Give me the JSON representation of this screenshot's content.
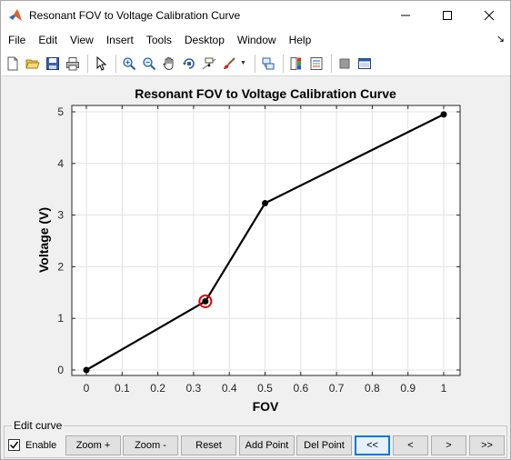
{
  "window": {
    "title": "Resonant FOV to Voltage Calibration Curve",
    "controls": [
      "minimize",
      "maximize",
      "close"
    ]
  },
  "menu": {
    "items": [
      "File",
      "Edit",
      "View",
      "Insert",
      "Tools",
      "Desktop",
      "Window",
      "Help"
    ]
  },
  "toolbar": {
    "icons": [
      "new-figure-icon",
      "open-file-icon",
      "save-icon",
      "print-icon",
      "pointer-icon",
      "zoom-in-icon",
      "zoom-out-icon",
      "pan-icon",
      "rotate-icon",
      "data-cursor-icon",
      "brush-icon",
      "link-icon",
      "colorbar-icon",
      "legend-icon",
      "hide-plot-tools-icon",
      "show-plot-tools-icon"
    ]
  },
  "chart_data": {
    "type": "line",
    "title": "Resonant FOV to Voltage Calibration Curve",
    "xlabel": "FOV",
    "ylabel": "Voltage (V)",
    "xlim": [
      0,
      1
    ],
    "ylim": [
      0,
      5
    ],
    "xticks": [
      "0",
      "0.1",
      "0.2",
      "0.3",
      "0.4",
      "0.5",
      "0.6",
      "0.7",
      "0.8",
      "0.9",
      "1"
    ],
    "yticks": [
      "0",
      "1",
      "2",
      "3",
      "4",
      "5"
    ],
    "grid": true,
    "series": [
      {
        "x": [
          0,
          0.333,
          0.5,
          1
        ],
        "y": [
          0,
          1.33,
          3.23,
          4.95
        ],
        "color": "#000000"
      }
    ],
    "selected_point_index": 1,
    "selected_color": "#e00000"
  },
  "panel": {
    "title": "Edit curve",
    "enable_label": "Enable",
    "enable_checked": true,
    "buttons": [
      {
        "name": "zoom-in-button",
        "label": "Zoom +",
        "active": false
      },
      {
        "name": "zoom-out-button",
        "label": "Zoom -",
        "active": false
      },
      {
        "name": "reset-button",
        "label": "Reset",
        "active": false
      },
      {
        "name": "add-point-button",
        "label": "Add Point",
        "active": false
      },
      {
        "name": "delete-point-button",
        "label": "Del Point",
        "active": false
      },
      {
        "name": "first-point-button",
        "label": "<<",
        "active": true
      },
      {
        "name": "previous-point-button",
        "label": "<",
        "active": false
      },
      {
        "name": "next-point-button",
        "label": ">",
        "active": false
      },
      {
        "name": "last-point-button",
        "label": ">>",
        "active": false
      }
    ]
  }
}
